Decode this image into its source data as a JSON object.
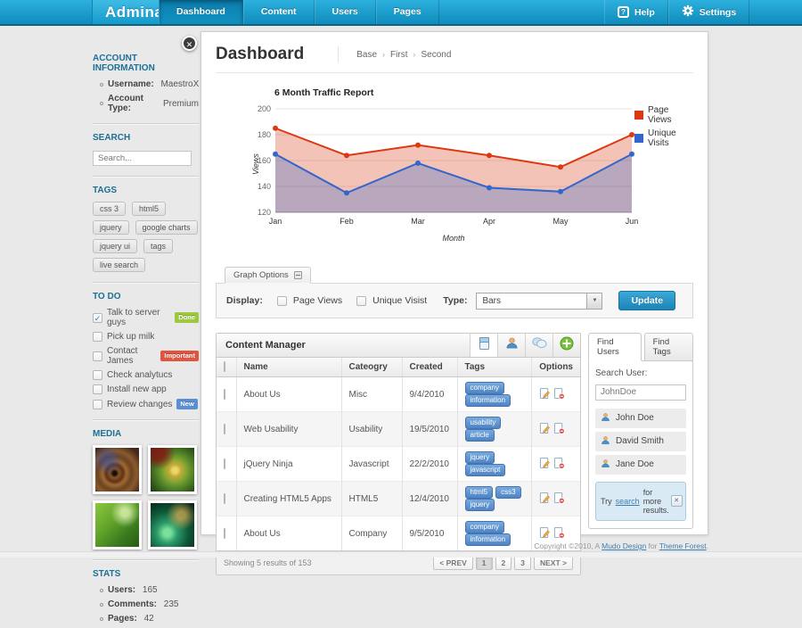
{
  "navbar": {
    "logo": "Admina",
    "items": [
      {
        "label": "Dashboard",
        "active": true
      },
      {
        "label": "Content",
        "active": false
      },
      {
        "label": "Users",
        "active": false
      },
      {
        "label": "Pages",
        "active": false
      }
    ],
    "help": {
      "label": "Help",
      "glyph": "?"
    },
    "settings": {
      "label": "Settings"
    }
  },
  "sidebar": {
    "close_glyph": "✕",
    "account": {
      "title": "ACCOUNT INFORMATION",
      "items": [
        {
          "label": "Username:",
          "value": "MaestroX"
        },
        {
          "label": "Account Type:",
          "value": "Premium"
        }
      ]
    },
    "search": {
      "title": "SEARCH",
      "placeholder": "Search..."
    },
    "tags": {
      "title": "TAGS",
      "items": [
        "css 3",
        "html5",
        "jquery",
        "google charts",
        "jquery ui",
        "tags",
        "live search"
      ]
    },
    "todo": {
      "title": "TO DO",
      "items": [
        {
          "label": "Talk to server guys",
          "checked": true,
          "badge": "Done",
          "badge_color": "#9dc93f"
        },
        {
          "label": "Pick up milk",
          "checked": false
        },
        {
          "label": "Contact James",
          "checked": false,
          "badge": "Important",
          "badge_color": "#e2543e"
        },
        {
          "label": "Check analytucs",
          "checked": false
        },
        {
          "label": "Install new app",
          "checked": false
        },
        {
          "label": "Review changes",
          "checked": false,
          "badge": "New",
          "badge_color": "#5b8fd4"
        }
      ]
    },
    "media": {
      "title": "MEDIA",
      "items": [
        "fractal-thumbnail-1",
        "fractal-thumbnail-2",
        "fractal-thumbnail-3",
        "fractal-thumbnail-4"
      ]
    },
    "stats": {
      "title": "STATS",
      "items": [
        {
          "label": "Users:",
          "value": "165"
        },
        {
          "label": "Comments:",
          "value": "235"
        },
        {
          "label": "Pages:",
          "value": "42"
        }
      ]
    }
  },
  "main": {
    "title": "Dashboard",
    "breadcrumb": [
      "Base",
      "First",
      "Second"
    ],
    "breadcrumb_separator": "›"
  },
  "chart_data": {
    "type": "area",
    "title": "6 Month Traffic Report",
    "x": [
      "Jan",
      "Feb",
      "Mar",
      "Apr",
      "May",
      "Jun"
    ],
    "series": [
      {
        "name": "Unique Visits",
        "color": "#3366CC",
        "values": [
          165,
          135,
          158,
          139,
          136,
          165
        ]
      },
      {
        "name": "Page Views",
        "color": "#DC3912",
        "values": [
          185,
          164,
          172,
          164,
          155,
          180
        ]
      }
    ],
    "xlabel": "Month",
    "ylabel": "Views",
    "ylim": [
      120,
      200
    ],
    "yticks": [
      120,
      140,
      160,
      180,
      200
    ],
    "fill_opacity": 0.3,
    "grid": true,
    "legend_position": "right"
  },
  "graph_options": {
    "tab_label": "Graph Options",
    "display_label": "Display:",
    "checkboxes": [
      {
        "label": "Page Views",
        "checked": false
      },
      {
        "label": "Unique Visist",
        "checked": false
      }
    ],
    "type_label": "Type:",
    "type_value": "Bars",
    "update_label": "Update"
  },
  "content_manager": {
    "title": "Content Manager",
    "toolbar_icons": [
      "document-icon",
      "user-icon",
      "comments-icon",
      "add-icon"
    ],
    "columns": [
      "Name",
      "Cateogry",
      "Created",
      "Tags",
      "Options"
    ],
    "rows": [
      {
        "name": "About Us",
        "category": "Misc",
        "created": "9/4/2010",
        "tags": [
          "company",
          "information"
        ]
      },
      {
        "name": "Web Usability",
        "category": "Usability",
        "created": "19/5/2010",
        "tags": [
          "usability",
          "article"
        ]
      },
      {
        "name": "jQuery Ninja",
        "category": "Javascript",
        "created": "22/2/2010",
        "tags": [
          "jquery",
          "javascript"
        ]
      },
      {
        "name": "Creating HTML5 Apps",
        "category": "HTML5",
        "created": "12/4/2010",
        "tags": [
          "html5",
          "css3",
          "jquery"
        ]
      },
      {
        "name": "About Us",
        "category": "Company",
        "created": "9/5/2010",
        "tags": [
          "company",
          "information"
        ]
      }
    ],
    "footer_text": "Showing 5 results of 153",
    "pagination": {
      "prev": "< PREV",
      "pages": [
        "1",
        "2",
        "3"
      ],
      "current": "1",
      "next": "NEXT >"
    }
  },
  "find_users": {
    "tabs": [
      {
        "label": "Find Users",
        "active": true
      },
      {
        "label": "Find Tags",
        "active": false
      }
    ],
    "search_label": "Search User:",
    "search_value": "JohnDoe",
    "users": [
      "John Doe",
      "David Smith",
      "Jane Doe"
    ],
    "note": {
      "pre": "Try",
      "link": "search",
      "post": "for more results.",
      "close_glyph": "✕"
    }
  },
  "footer": {
    "pre": "Copyright ©2010, A ",
    "link1": "Mudo Design",
    "mid": " for ",
    "link2": "Theme Forest",
    "post": "."
  }
}
